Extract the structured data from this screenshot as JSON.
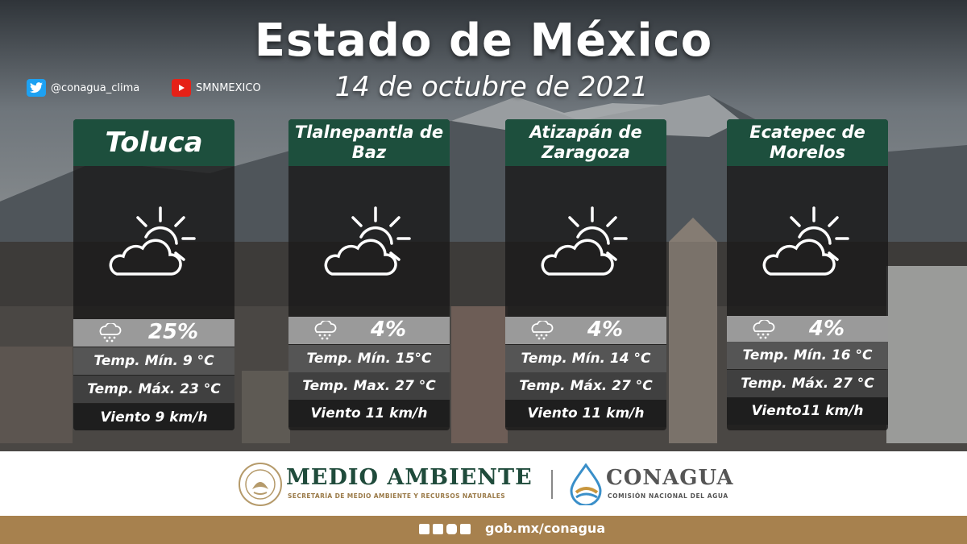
{
  "header": {
    "title": "Estado de México",
    "date": "14 de octubre de 2021"
  },
  "social": {
    "twitter": "@conagua_clima",
    "youtube": "SMNMEXICO"
  },
  "cities": [
    {
      "name_line1": "Toluca",
      "name_line2": "",
      "condition_icon": "partly-cloudy-icon",
      "rain_probability": "25%",
      "temp_min": "Temp. Mín. 9 °C",
      "temp_max": "Temp. Máx. 23 °C",
      "wind": "Viento 9 km/h"
    },
    {
      "name_line1": "Tlalnepantla de",
      "name_line2": "Baz",
      "condition_icon": "partly-cloudy-icon",
      "rain_probability": "4%",
      "temp_min": "Temp. Mín. 15°C",
      "temp_max": "Temp. Max. 27 °C",
      "wind": "Viento 11 km/h"
    },
    {
      "name_line1": "Atizapán de",
      "name_line2": "Zaragoza",
      "condition_icon": "partly-cloudy-icon",
      "rain_probability": "4%",
      "temp_min": "Temp. Mín. 14 °C",
      "temp_max": "Temp. Máx. 27 °C",
      "wind": "Viento 11 km/h"
    },
    {
      "name_line1": "Ecatepec de",
      "name_line2": "Morelos",
      "condition_icon": "partly-cloudy-icon",
      "rain_probability": "4%",
      "temp_min": "Temp. Mín. 16 °C",
      "temp_max": "Temp. Máx. 27 °C",
      "wind": "Viento11 km/h"
    }
  ],
  "footer": {
    "medio_ambiente": "MEDIO AMBIENTE",
    "medio_ambiente_sub": "SECRETARÍA DE MEDIO AMBIENTE Y RECURSOS NATURALES",
    "conagua": "CONAGUA",
    "conagua_sub": "COMISIÓN NACIONAL DEL AGUA",
    "url": "gob.mx/conagua"
  },
  "colors": {
    "card_header": "#1d4f3d",
    "footer_bar": "#a7814e",
    "medio_ambiente_text": "#1f4b3b"
  }
}
